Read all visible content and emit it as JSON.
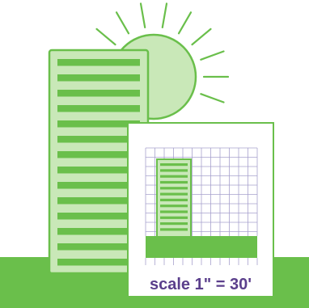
{
  "scale_label": "scale 1\" = 30'",
  "colors": {
    "green": "#6abf4b",
    "light_green": "#c9e8b8",
    "scale_text": "#5b3f8c",
    "grid": "#8a82bc"
  },
  "icons": {
    "sun": "sun-icon",
    "building": "building-icon",
    "ground": "ground-strip"
  }
}
